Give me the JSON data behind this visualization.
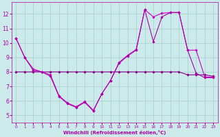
{
  "xlabel": "Windchill (Refroidissement éolien,°C)",
  "bg_color": "#cceaea",
  "grid_color": "#aad4d4",
  "line_color1": "#aa00aa",
  "line_color2": "#cc00cc",
  "line_color3": "#880088",
  "line1_x": [
    0,
    1,
    2,
    3,
    4,
    5,
    6,
    7,
    8,
    9,
    10,
    11,
    12,
    13,
    14,
    15,
    16,
    17,
    18,
    19,
    20,
    21,
    22,
    23
  ],
  "line1_y": [
    10.3,
    9.0,
    8.1,
    8.0,
    7.7,
    6.3,
    5.8,
    5.55,
    5.9,
    5.3,
    6.5,
    7.4,
    8.6,
    9.1,
    9.5,
    12.3,
    10.1,
    11.8,
    12.1,
    12.1,
    9.5,
    7.9,
    7.6,
    7.6
  ],
  "line2_x": [
    0,
    1,
    2,
    3,
    4,
    5,
    6,
    7,
    8,
    9,
    10,
    11,
    12,
    13,
    14,
    15,
    16,
    17,
    18,
    19,
    20,
    21,
    22,
    23
  ],
  "line2_y": [
    10.3,
    9.0,
    8.2,
    8.0,
    7.8,
    6.35,
    5.85,
    5.6,
    5.95,
    5.35,
    6.5,
    7.4,
    8.65,
    9.15,
    9.55,
    12.3,
    11.8,
    12.05,
    12.1,
    12.1,
    9.5,
    9.5,
    7.65,
    7.65
  ],
  "line3_x": [
    0,
    1,
    2,
    3,
    4,
    5,
    6,
    7,
    8,
    9,
    10,
    11,
    12,
    13,
    14,
    15,
    16,
    17,
    18,
    19,
    20,
    21,
    22,
    23
  ],
  "line3_y": [
    8.0,
    8.0,
    8.0,
    8.0,
    8.0,
    8.0,
    8.0,
    8.0,
    8.0,
    8.0,
    8.0,
    8.0,
    8.0,
    8.0,
    8.0,
    8.0,
    8.0,
    8.0,
    8.0,
    8.0,
    7.8,
    7.8,
    7.8,
    7.7
  ],
  "ylim": [
    4.5,
    12.8
  ],
  "xlim": [
    -0.5,
    23.5
  ],
  "yticks": [
    5,
    6,
    7,
    8,
    9,
    10,
    11,
    12
  ],
  "xticks": [
    0,
    1,
    2,
    3,
    4,
    5,
    6,
    7,
    8,
    9,
    10,
    11,
    12,
    13,
    14,
    15,
    16,
    17,
    18,
    19,
    20,
    21,
    22,
    23
  ]
}
